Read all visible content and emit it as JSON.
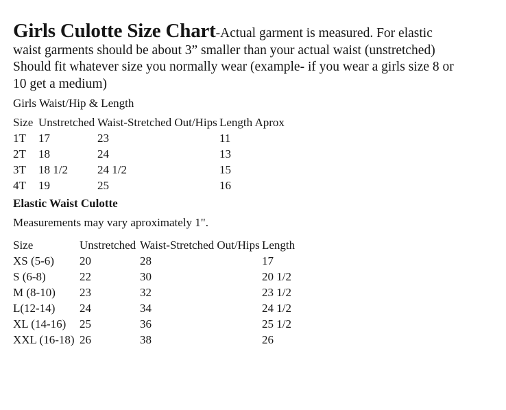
{
  "colors": {
    "text": "#161616",
    "background": "#ffffff"
  },
  "intro": {
    "title_bold": "Girls Culotte Size Chart",
    "line1_rest": "-Actual garment is measured. For elastic",
    "line2": "waist garments should be about 3” smaller than your actual waist (unstretched)",
    "line3": "Should fit whatever size you normally wear (example- if you wear a girls size 8 or",
    "line4": "10 get a medium)"
  },
  "toddler_section": {
    "subtitle": "Girls Waist/Hip & Length",
    "headers": [
      "Size",
      "Unstretched",
      "Waist-Stretched Out/Hips",
      "Length Aprox"
    ],
    "rows": [
      [
        "1T",
        "17",
        "23",
        "11"
      ],
      [
        "2T",
        "18",
        "24",
        "13"
      ],
      [
        "3T",
        "18 1/2",
        "24 1/2",
        "15"
      ],
      [
        "4T",
        "19",
        "25",
        "16"
      ]
    ]
  },
  "elastic_section": {
    "heading": "Elastic Waist Culotte",
    "note": "Measurements may vary aproximately 1\".",
    "headers": [
      "Size",
      "Unstretched",
      "Waist-Stretched Out/Hips",
      "Length"
    ],
    "rows": [
      [
        "XS (5-6)",
        "20",
        "28",
        "17"
      ],
      [
        "S (6-8)",
        "22",
        "30",
        "20 1/2"
      ],
      [
        "M (8-10)",
        "23",
        "32",
        "23 1/2"
      ],
      [
        "L(12-14)",
        "24",
        "34",
        "24 1/2"
      ],
      [
        "XL (14-16)",
        "25",
        "36",
        "25 1/2"
      ],
      [
        "XXL (16-18)",
        "26",
        "38",
        "26"
      ]
    ]
  }
}
